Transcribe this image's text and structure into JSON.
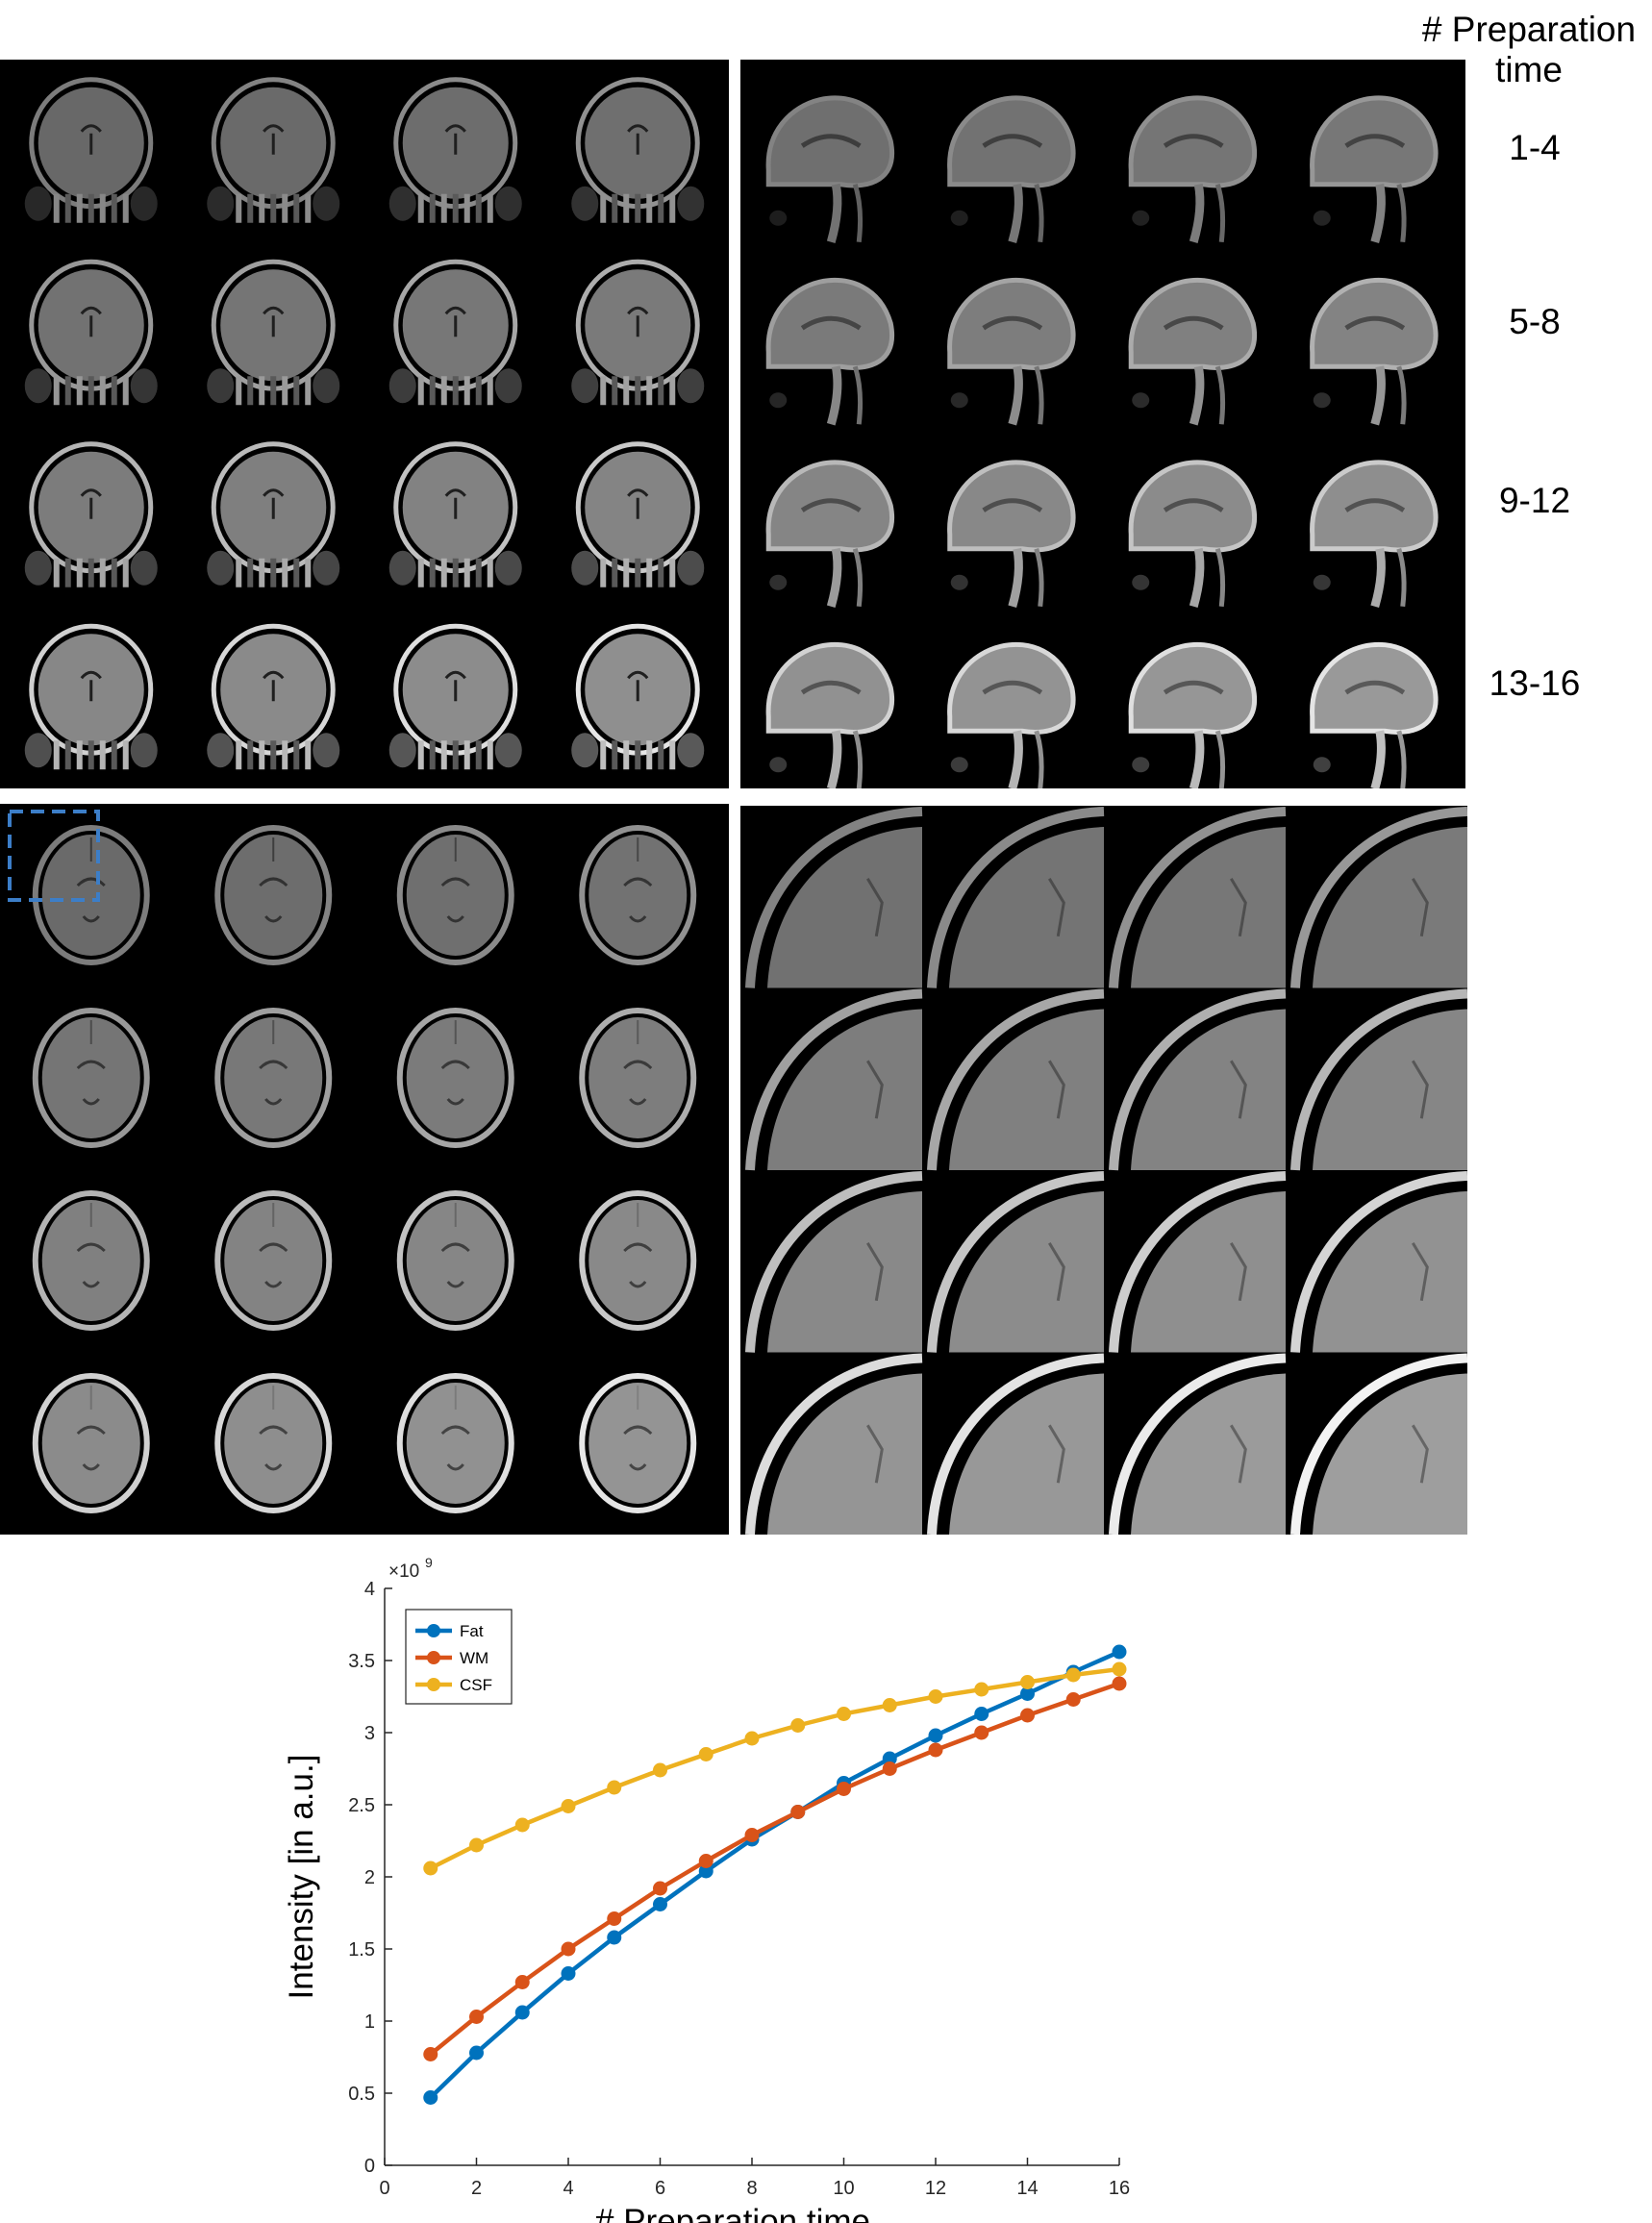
{
  "header": {
    "line1": "# Preparation",
    "line2": "time"
  },
  "row_labels": [
    "1-4",
    "5-8",
    "9-12",
    "13-16"
  ],
  "panels": [
    {
      "name": "coronal-panel",
      "view": "coronal"
    },
    {
      "name": "sagittal-panel",
      "view": "sagittal"
    },
    {
      "name": "axial-panel",
      "view": "axial"
    },
    {
      "name": "axial-zoom-panel",
      "view": "zoomed axial region"
    }
  ],
  "colors": {
    "fat": "#0072BD",
    "wm": "#D95319",
    "csf": "#EDB120",
    "roi_box": "#3C7EC8"
  },
  "chart_data": {
    "type": "line",
    "title": "",
    "xlabel": "# Preparation time",
    "ylabel": "Intensity [in a.u.]",
    "exponent_label": "×10",
    "exponent_power": "9",
    "xlim": [
      0,
      16
    ],
    "ylim": [
      0,
      4
    ],
    "xticks": [
      "0",
      "2",
      "4",
      "6",
      "8",
      "10",
      "12",
      "14",
      "16"
    ],
    "yticks": [
      "0",
      "0.5",
      "1",
      "1.5",
      "2",
      "2.5",
      "3",
      "3.5",
      "4"
    ],
    "grid": false,
    "legend_position": "top-left",
    "x": [
      1,
      2,
      3,
      4,
      5,
      6,
      7,
      8,
      9,
      10,
      11,
      12,
      13,
      14,
      15,
      16
    ],
    "series": [
      {
        "name": "Fat",
        "color": "#0072BD",
        "values": [
          0.47,
          0.78,
          1.06,
          1.33,
          1.58,
          1.81,
          2.04,
          2.26,
          2.45,
          2.65,
          2.82,
          2.98,
          3.13,
          3.27,
          3.42,
          3.56
        ]
      },
      {
        "name": "WM",
        "color": "#D95319",
        "values": [
          0.77,
          1.03,
          1.27,
          1.5,
          1.71,
          1.92,
          2.11,
          2.29,
          2.45,
          2.61,
          2.75,
          2.88,
          3.0,
          3.12,
          3.23,
          3.34
        ]
      },
      {
        "name": "CSF",
        "color": "#EDB120",
        "values": [
          2.06,
          2.22,
          2.36,
          2.49,
          2.62,
          2.74,
          2.85,
          2.96,
          3.05,
          3.13,
          3.19,
          3.25,
          3.3,
          3.35,
          3.4,
          3.44
        ]
      }
    ]
  }
}
